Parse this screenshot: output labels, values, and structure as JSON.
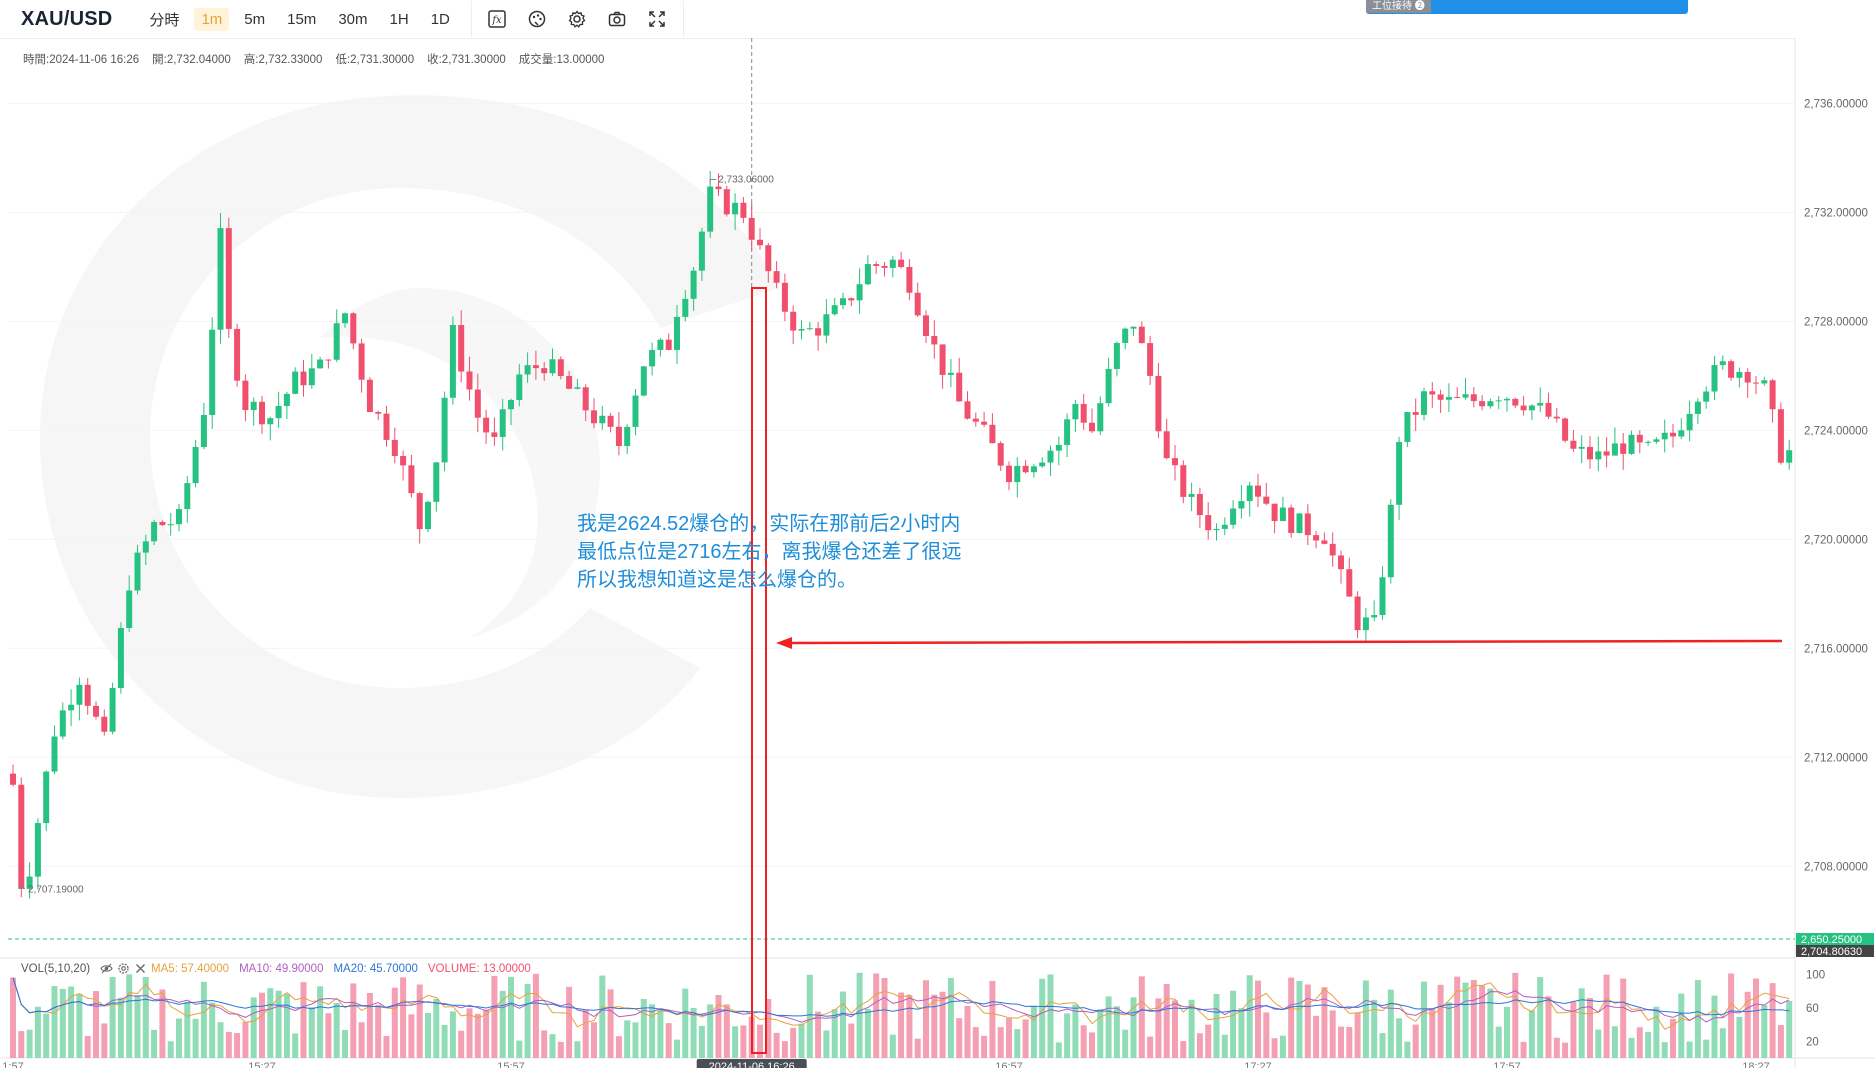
{
  "toolbar": {
    "symbol": "XAU/USD",
    "timeframes": [
      "分時",
      "1m",
      "5m",
      "15m",
      "30m",
      "1H",
      "1D"
    ],
    "active_timeframe": "1m",
    "tools": [
      "formula-icon",
      "palette-icon",
      "gear-icon",
      "camera-icon",
      "fullscreen-icon"
    ]
  },
  "banner": {
    "label": "工位接待 ❷"
  },
  "ohlc": {
    "time": "時間:2024-11-06 16:26",
    "open": "開:2,732.04000",
    "high": "高:2,732.33000",
    "low": "低:2,731.30000",
    "close": "收:2,731.30000",
    "volume": "成交量:13.00000"
  },
  "annotation": {
    "line1": "我是2624.52爆仓的，实际在那前后2小时内",
    "line2": "最低点位是2716左右，离我爆仓还差了很远",
    "line3": "所以我想知道这是怎么爆仓的。"
  },
  "volume_legend": {
    "title": "VOL(5,10,20)",
    "ma5": "MA5: 57.40000",
    "ma10": "MA10: 49.90000",
    "ma20": "MA20: 45.70000",
    "volume": "VOLUME: 13.00000"
  },
  "colors": {
    "up": "#26c281",
    "down": "#f0506e",
    "up_volume": "#8fdcb6",
    "down_volume": "#f5a0b2",
    "ma5": "#e6a23c",
    "ma10": "#b15ec2",
    "ma20": "#2e75d9",
    "annotation": "#1e8ed8",
    "marker": "#ee2222"
  },
  "chart_data": {
    "type": "candlestick",
    "y_ticks": [
      "2,736.00000",
      "2,732.00000",
      "2,728.00000",
      "2,724.00000",
      "2,720.00000",
      "2,716.00000",
      "2,712.00000",
      "2,708.00000"
    ],
    "ylim": [
      2705.0,
      2738.4
    ],
    "x_ticks": [
      {
        "index": 0,
        "label": "1:57"
      },
      {
        "index": 30,
        "label": "15:27"
      },
      {
        "index": 60,
        "label": "15:57"
      },
      {
        "index": 120,
        "label": "16:57"
      },
      {
        "index": 150,
        "label": "17:27"
      },
      {
        "index": 180,
        "label": "17:57"
      },
      {
        "index": 210,
        "label": "18:27"
      }
    ],
    "crosshair": {
      "index": 89,
      "label": "2024-11-06 16:26"
    },
    "high_label": {
      "index": 84,
      "value": 2733.06,
      "text": "2,733.06000"
    },
    "low_label": {
      "index": 0,
      "value": 2707.19,
      "text": "2,707.19000"
    },
    "price_tags": [
      {
        "value": 2650.25,
        "text": "2,650.25000",
        "color": "#26c281"
      },
      {
        "value": 2704.8063,
        "text": "2,704.80630",
        "color": "#444444"
      }
    ],
    "volume_ticks": [
      {
        "value": 100,
        "text": "100"
      },
      {
        "value": 60,
        "text": "60"
      },
      {
        "value": 20,
        "text": "20"
      }
    ],
    "volume_max": 115,
    "close_path": [
      [
        0,
        2711.0
      ],
      [
        1,
        2707.4
      ],
      [
        2,
        2708.0
      ],
      [
        5,
        2713.0
      ],
      [
        8,
        2715.0
      ],
      [
        11,
        2712.5
      ],
      [
        14,
        2718.5
      ],
      [
        17,
        2720.5
      ],
      [
        20,
        2720.7
      ],
      [
        23,
        2724.8
      ],
      [
        25,
        2731.0
      ],
      [
        26,
        2727.5
      ],
      [
        28,
        2725.0
      ],
      [
        31,
        2724.5
      ],
      [
        34,
        2725.8
      ],
      [
        37,
        2726.3
      ],
      [
        40,
        2728.3
      ],
      [
        43,
        2725.0
      ],
      [
        46,
        2723.5
      ],
      [
        49,
        2720.5
      ],
      [
        51,
        2723.0
      ],
      [
        53,
        2727.5
      ],
      [
        56,
        2724.5
      ],
      [
        58,
        2723.5
      ],
      [
        61,
        2726.0
      ],
      [
        64,
        2726.5
      ],
      [
        67,
        2725.5
      ],
      [
        70,
        2724.5
      ],
      [
        73,
        2723.5
      ],
      [
        76,
        2726.5
      ],
      [
        79,
        2727.2
      ],
      [
        80,
        2728.5
      ],
      [
        82,
        2730.0
      ],
      [
        84,
        2732.6
      ],
      [
        86,
        2732.3
      ],
      [
        88,
        2732.0
      ],
      [
        89,
        2731.3
      ],
      [
        92,
        2729.0
      ],
      [
        95,
        2727.5
      ],
      [
        97,
        2727.8
      ],
      [
        100,
        2728.5
      ],
      [
        103,
        2730.0
      ],
      [
        106,
        2730.2
      ],
      [
        108,
        2729.5
      ],
      [
        111,
        2727.0
      ],
      [
        114,
        2725.0
      ],
      [
        117,
        2723.8
      ],
      [
        120,
        2722.5
      ],
      [
        123,
        2723.0
      ],
      [
        126,
        2723.5
      ],
      [
        128,
        2725.0
      ],
      [
        130,
        2724.0
      ],
      [
        133,
        2727.0
      ],
      [
        135,
        2728.0
      ],
      [
        137,
        2726.0
      ],
      [
        139,
        2722.8
      ],
      [
        142,
        2721.3
      ],
      [
        145,
        2720.3
      ],
      [
        147,
        2721.5
      ],
      [
        149,
        2722.2
      ],
      [
        152,
        2721.0
      ],
      [
        155,
        2720.5
      ],
      [
        158,
        2720.2
      ],
      [
        160,
        2718.5
      ],
      [
        162,
        2717.0
      ],
      [
        164,
        2716.8
      ],
      [
        166,
        2721.0
      ],
      [
        167,
        2723.8
      ],
      [
        170,
        2725.2
      ],
      [
        173,
        2725.0
      ],
      [
        176,
        2725.1
      ],
      [
        179,
        2725.4
      ],
      [
        182,
        2725.1
      ],
      [
        185,
        2724.5
      ],
      [
        188,
        2723.2
      ],
      [
        191,
        2723.0
      ],
      [
        194,
        2723.5
      ],
      [
        197,
        2723.2
      ],
      [
        200,
        2723.8
      ],
      [
        203,
        2725.5
      ],
      [
        206,
        2726.3
      ],
      [
        209,
        2726.2
      ],
      [
        211,
        2725.5
      ],
      [
        213,
        2723.2
      ]
    ]
  }
}
